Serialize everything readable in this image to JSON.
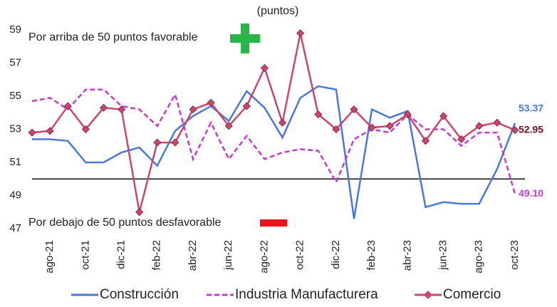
{
  "chart_data": {
    "type": "line",
    "subtitle": "(puntos)",
    "annotations": [
      "Por arriba de 50 puntos favorable",
      "Por debajo de 50 puntos desfavorable"
    ],
    "categories": [
      null,
      "ago-21",
      null,
      "oct-21",
      null,
      "dic-21",
      null,
      "feb-22",
      null,
      "abr-22",
      null,
      "jun-22",
      null,
      "ago-22",
      null,
      "oct-22",
      null,
      "dic-22",
      null,
      "feb-23",
      null,
      "abr-23",
      null,
      "jun-23",
      null,
      "ago-23",
      null,
      "oct-23"
    ],
    "ylim": [
      47,
      59
    ],
    "yticks": [
      47,
      49,
      51,
      53,
      55,
      57,
      59
    ],
    "hline": 50,
    "legend": "bottom",
    "series": [
      {
        "name": "Construcción",
        "color": "#4a78d8",
        "dash": false,
        "marker": false,
        "values": [
          52.4,
          52.4,
          52.3,
          51.0,
          51.0,
          51.6,
          51.9,
          50.8,
          52.9,
          53.8,
          54.4,
          53.5,
          55.3,
          54.3,
          52.5,
          54.9,
          55.6,
          55.4,
          47.6,
          54.2,
          53.7,
          54.1,
          48.3,
          48.6,
          48.5,
          48.5,
          50.6,
          53.37
        ],
        "value_labels": [
          null,
          null,
          null,
          null,
          null,
          null,
          null,
          null,
          null,
          null,
          null,
          null,
          null,
          null,
          null,
          null,
          null,
          null,
          null,
          null,
          null,
          null,
          null,
          null,
          null,
          null,
          null,
          "53.37"
        ]
      },
      {
        "name": "Industria Manufacturera",
        "color": "#c43bd1",
        "dash": true,
        "marker": false,
        "values": [
          54.7,
          54.9,
          54.2,
          55.4,
          55.4,
          54.4,
          54.2,
          53.2,
          55.1,
          51.2,
          53.4,
          51.2,
          52.6,
          51.2,
          51.6,
          51.8,
          51.7,
          49.8,
          52.4,
          53.0,
          52.8,
          53.9,
          53.0,
          53.0,
          52.0,
          52.8,
          52.8,
          49.1
        ],
        "value_labels": [
          null,
          null,
          null,
          null,
          null,
          null,
          null,
          null,
          null,
          null,
          null,
          null,
          null,
          null,
          null,
          null,
          null,
          null,
          null,
          null,
          null,
          null,
          null,
          null,
          null,
          null,
          null,
          "49.10"
        ]
      },
      {
        "name": "Comercio",
        "color": "#c8476f",
        "dash": false,
        "marker": true,
        "values": [
          52.8,
          52.9,
          54.4,
          53.0,
          54.3,
          54.2,
          48.0,
          52.2,
          52.2,
          54.2,
          54.6,
          53.2,
          54.4,
          56.7,
          53.4,
          58.8,
          53.9,
          53.0,
          54.2,
          53.1,
          53.2,
          53.9,
          52.3,
          53.8,
          52.4,
          53.2,
          53.4,
          52.95
        ],
        "value_labels": [
          null,
          null,
          null,
          null,
          null,
          null,
          null,
          null,
          null,
          null,
          null,
          null,
          null,
          null,
          null,
          null,
          null,
          null,
          null,
          null,
          null,
          null,
          null,
          null,
          null,
          null,
          null,
          "52.95"
        ]
      }
    ]
  }
}
